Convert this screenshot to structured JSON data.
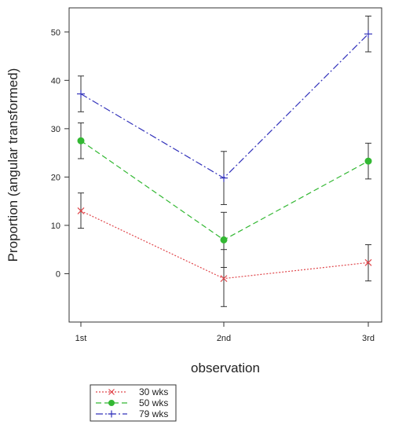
{
  "chart_data": {
    "type": "line",
    "categories": [
      "1st",
      "2nd",
      "3rd"
    ],
    "xlabel": "observation",
    "ylabel": "Proportion (angular transformed)",
    "ylim": [
      -10,
      55
    ],
    "yticks": [
      0,
      10,
      20,
      30,
      40,
      50
    ],
    "grid": false,
    "legend_position": "bottom-left",
    "series": [
      {
        "name": "30 wks",
        "color": "#e0474c",
        "marker": "x-mark",
        "dash": "dotted",
        "values": [
          13.0,
          -1.0,
          2.3
        ],
        "err_low": [
          9.4,
          -6.8,
          -1.5
        ],
        "err_high": [
          16.7,
          5.0,
          6.0
        ]
      },
      {
        "name": "50 wks",
        "color": "#33b833",
        "marker": "filled-circle",
        "dash": "dashed",
        "values": [
          27.5,
          7.0,
          23.3
        ],
        "err_low": [
          23.8,
          1.3,
          19.6
        ],
        "err_high": [
          31.2,
          12.7,
          27.0
        ]
      },
      {
        "name": "79 wks",
        "color": "#3333bb",
        "marker": "plus-mark",
        "dash": "dash-dot",
        "values": [
          37.2,
          19.8,
          49.6
        ],
        "err_low": [
          33.5,
          14.3,
          45.9
        ],
        "err_high": [
          40.9,
          25.3,
          53.3
        ]
      }
    ]
  }
}
